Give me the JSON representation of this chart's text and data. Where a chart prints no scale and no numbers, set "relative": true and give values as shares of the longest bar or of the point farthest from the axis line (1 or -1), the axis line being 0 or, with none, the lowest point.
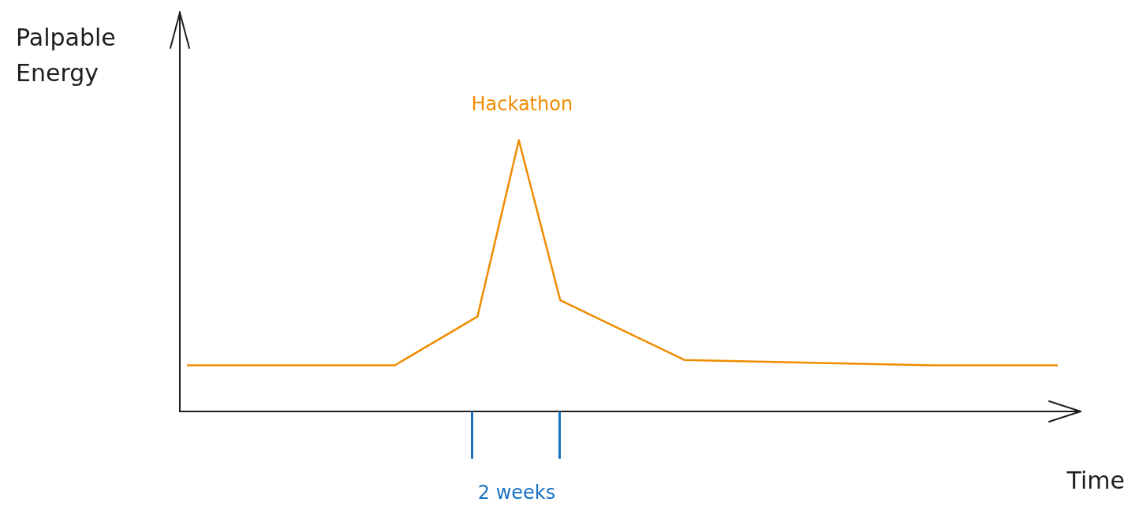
{
  "chart_data": {
    "type": "line",
    "relative": true,
    "xlabel": "Time",
    "ylabel": "Palpable Energy",
    "categories": [
      null,
      null,
      null,
      null,
      null,
      null,
      null,
      null,
      null,
      null,
      null,
      null,
      null,
      null,
      null,
      null,
      null,
      null,
      null,
      null,
      null,
      null
    ],
    "series": [
      {
        "color": "#f08c00",
        "values": [
          0.17,
          null,
          null,
          null,
          null,
          0.17,
          null,
          0.35,
          1,
          0.41,
          null,
          null,
          0.19,
          null,
          null,
          null,
          null,
          null,
          0.17,
          null,
          null,
          0.17
        ]
      }
    ],
    "annotations": [
      {
        "text": "Hackathon",
        "y": 1
      },
      "2 weeks"
    ],
    "grid": false,
    "legend": false,
    "marker": "none",
    "line_style": "solid"
  }
}
